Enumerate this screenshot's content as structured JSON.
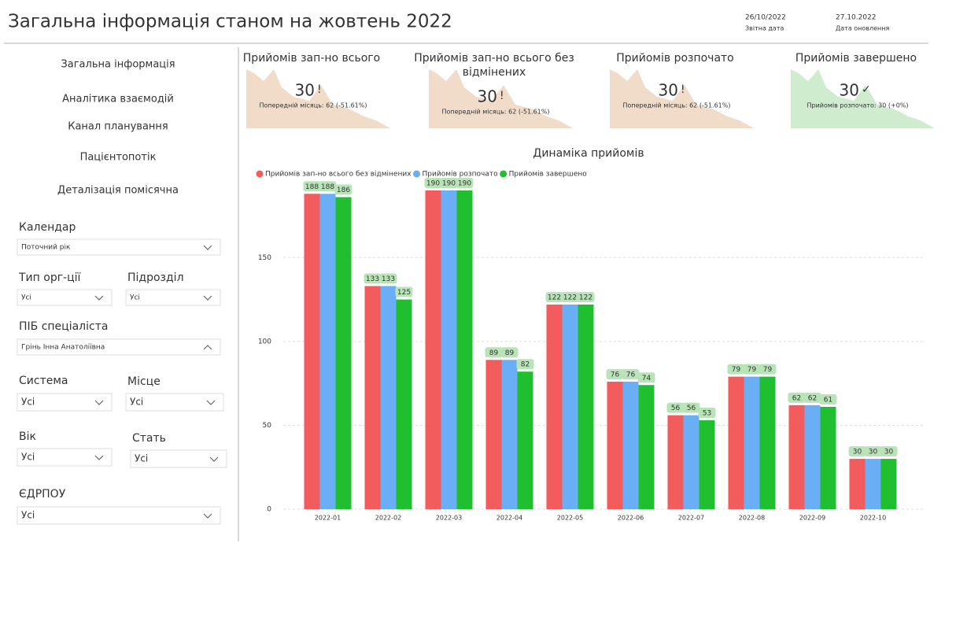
{
  "header": {
    "title": "Загальна інформація станом на жовтень 2022",
    "report_date": "26/10/2022",
    "report_date_label": "Звітна дата",
    "update_date": "27.10.2022",
    "update_date_label": "Дата оновлення"
  },
  "nav": [
    "Загальна інформація",
    "Аналітика взаємодій",
    "Канал планування",
    "Пацієнтопотік",
    "Деталізація помісячна"
  ],
  "filters": [
    {
      "label": "Календар",
      "value": "Поточний рік"
    },
    {
      "label": "Тип орг-ції",
      "value": "Усі"
    },
    {
      "label": "Підрозділ",
      "value": "Усі"
    },
    {
      "label": "ПІБ спеціаліста",
      "value": "Грінь Інна Анатоліївна"
    },
    {
      "label": "Система",
      "value": "Усі"
    },
    {
      "label": "Місце",
      "value": "Усі"
    },
    {
      "label": "Вік",
      "value": "Усі"
    },
    {
      "label": "Стать",
      "value": "Усі"
    },
    {
      "label": "ЄДРПОУ",
      "value": "Усі"
    }
  ],
  "kpis": [
    {
      "title": "Прийомів зап-но всього",
      "value": 30,
      "icon": "!",
      "note": "Попередній місяць: 62 (-51.61%)"
    },
    {
      "title": "Прийомів зап-но всього без відмінених",
      "value": 30,
      "icon": "!",
      "note": "Попередній місяць: 62 (-51.61%)"
    },
    {
      "title": "Прийомів розпочато",
      "value": 30,
      "icon": "!",
      "note": "Попередній місяць: 62 (-51.61%)"
    },
    {
      "title": "Прийомів завершено",
      "value": 30,
      "icon": "✓",
      "note": "Прийомів розпочато: 30 (+0%)"
    }
  ],
  "chart_data": {
    "type": "bar",
    "title": "Динаміка прийомів",
    "categories": [
      "2022-01",
      "2022-02",
      "2022-03",
      "2022-04",
      "2022-05",
      "2022-06",
      "2022-07",
      "2022-08",
      "2022-09",
      "2022-10"
    ],
    "series": [
      {
        "name": "Прийомів зап-но всього без відмінених",
        "color": "#f25c5c",
        "values": [
          188,
          133,
          190,
          89,
          122,
          76,
          56,
          79,
          62,
          30
        ]
      },
      {
        "name": "Прийомів розпочато",
        "color": "#6aaef5",
        "values": [
          188,
          133,
          190,
          89,
          122,
          76,
          56,
          79,
          62,
          30
        ]
      },
      {
        "name": "Прийомів завершено",
        "color": "#1fbf2f",
        "values": [
          186,
          125,
          190,
          82,
          122,
          74,
          53,
          79,
          61,
          30
        ]
      }
    ],
    "ylim": [
      0,
      195
    ],
    "yticks": [
      0,
      50,
      100,
      150
    ],
    "grid": true,
    "legend": "top-left"
  }
}
